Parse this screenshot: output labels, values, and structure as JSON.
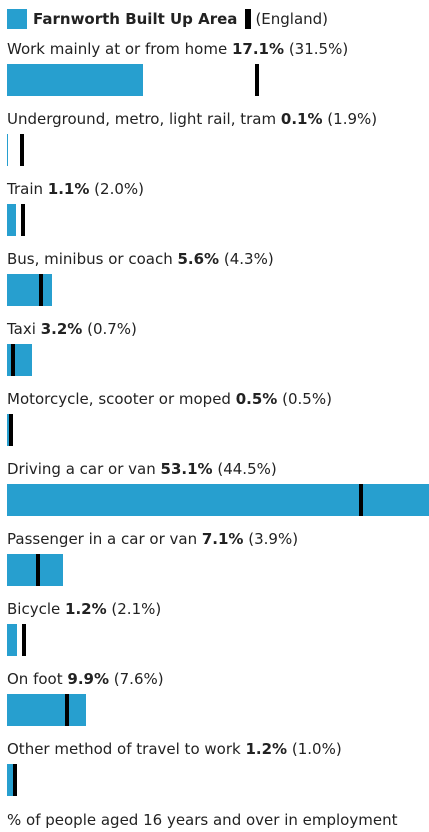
{
  "chart_data": {
    "type": "bar",
    "categories": [
      "Work mainly at or from home",
      "Underground, metro, light rail, tram",
      "Train",
      "Bus, minibus or coach",
      "Taxi",
      "Motorcycle, scooter or moped",
      "Driving a car or van",
      "Passenger in a car or van",
      "Bicycle",
      "On foot",
      "Other method of travel to work"
    ],
    "series": [
      {
        "name": "Farnworth Built Up Area",
        "color": "#279fcf",
        "values": [
          17.1,
          0.1,
          1.1,
          5.6,
          3.2,
          0.5,
          53.1,
          7.1,
          1.2,
          9.9,
          1.2
        ],
        "value_labels": [
          "17.1%",
          "0.1%",
          "1.1%",
          "5.6%",
          "3.2%",
          "0.5%",
          "53.1%",
          "7.1%",
          "1.2%",
          "9.9%",
          "1.2%"
        ]
      },
      {
        "name": "(England)",
        "color": "#000000",
        "values": [
          31.5,
          1.9,
          2.0,
          4.3,
          0.7,
          0.5,
          44.5,
          3.9,
          2.1,
          7.6,
          1.0
        ],
        "value_labels": [
          "(31.5%)",
          "(1.9%)",
          "(2.0%)",
          "(4.3%)",
          "(0.7%)",
          "(0.5%)",
          "(44.5%)",
          "(3.9%)",
          "(2.1%)",
          "(7.6%)",
          "(1.0%)"
        ]
      }
    ],
    "note": "% of people aged 16 years and over in employment"
  }
}
